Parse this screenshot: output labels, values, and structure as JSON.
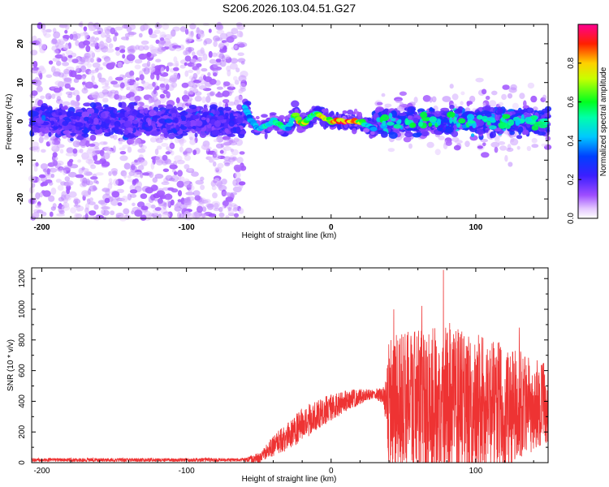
{
  "figure_title": "S206.2026.103.04.51.G27",
  "chart_data": [
    {
      "type": "heatmap",
      "title": "S206.2026.103.04.51.G27",
      "xlabel": "Height of straight line (km)",
      "ylabel": "Frequency (Hz)",
      "xlim": [
        -207,
        150
      ],
      "ylim": [
        -25,
        25
      ],
      "x_ticks": [
        -200,
        -100,
        0,
        100
      ],
      "x_tick_labels": [
        "-200",
        "-100",
        "0",
        "100"
      ],
      "y_ticks": [
        -20,
        -10,
        0,
        10,
        20
      ],
      "y_tick_labels": [
        "-20",
        "-10",
        "0",
        "10",
        "20"
      ],
      "colorbar": {
        "label": "Normalized spectral amplitude",
        "range": [
          0,
          1
        ],
        "ticks": [
          0.0,
          0.2,
          0.4,
          0.6,
          0.8
        ],
        "tick_labels": [
          "0.0",
          "0.2",
          "0.4",
          "0.6",
          "0.8"
        ],
        "colormap": "rainbow (white, purple, blue, cyan, green, yellow, red, magenta)"
      },
      "regions": [
        {
          "x_range": [
            -207,
            -60
          ],
          "description": "noise scattered across -25..25 Hz, dense band -6..6 Hz",
          "peak_amplitude": 0.3
        },
        {
          "x_range": [
            -60,
            30
          ],
          "description": "narrow signal band near 0 Hz",
          "peak_amplitude": 0.95
        },
        {
          "x_range": [
            30,
            150
          ],
          "description": "band -6..6 Hz with sparse scatter",
          "peak_amplitude": 0.55
        }
      ],
      "ridge_points": {
        "x": [
          -60,
          -55,
          -50,
          -45,
          -40,
          -35,
          -30,
          -25,
          -20,
          -15,
          -10,
          -5,
          0,
          5,
          10,
          15,
          20,
          25,
          30
        ],
        "freq": [
          4,
          0,
          -2,
          -1,
          0,
          -1,
          -2,
          2,
          -1,
          1,
          2,
          1,
          0,
          0,
          0,
          0,
          0,
          -1,
          -2
        ],
        "amplitude": [
          0.5,
          0.4,
          0.45,
          0.55,
          0.5,
          0.6,
          0.4,
          0.65,
          0.85,
          0.6,
          0.6,
          0.85,
          0.8,
          0.9,
          0.95,
          0.95,
          0.75,
          0.55,
          0.35
        ]
      }
    },
    {
      "type": "line",
      "xlabel": "Height of straight line (km)",
      "ylabel": "SNR (10 * v/v)",
      "xlim": [
        -207,
        150
      ],
      "ylim": [
        0,
        1270
      ],
      "x_ticks": [
        -200,
        -100,
        0,
        100
      ],
      "x_tick_labels": [
        "-200",
        "-100",
        "0",
        "100"
      ],
      "y_ticks": [
        0,
        200,
        400,
        600,
        800,
        1000,
        1200
      ],
      "y_tick_labels": [
        "0",
        "200",
        "400",
        "600",
        "800",
        "1000",
        "1200"
      ],
      "line_color": "#ee3333",
      "envelope": {
        "x": [
          -207,
          -60,
          -50,
          -40,
          -30,
          -20,
          -10,
          0,
          10,
          20,
          30,
          36,
          40,
          60,
          80,
          100,
          120,
          140,
          150
        ],
        "base": [
          18,
          18,
          30,
          110,
          170,
          250,
          310,
          360,
          400,
          430,
          450,
          440,
          400,
          390,
          380,
          370,
          360,
          380,
          390
        ],
        "spread": [
          12,
          12,
          35,
          70,
          90,
          110,
          110,
          90,
          70,
          50,
          30,
          60,
          420,
          480,
          520,
          470,
          420,
          300,
          260
        ]
      }
    }
  ]
}
